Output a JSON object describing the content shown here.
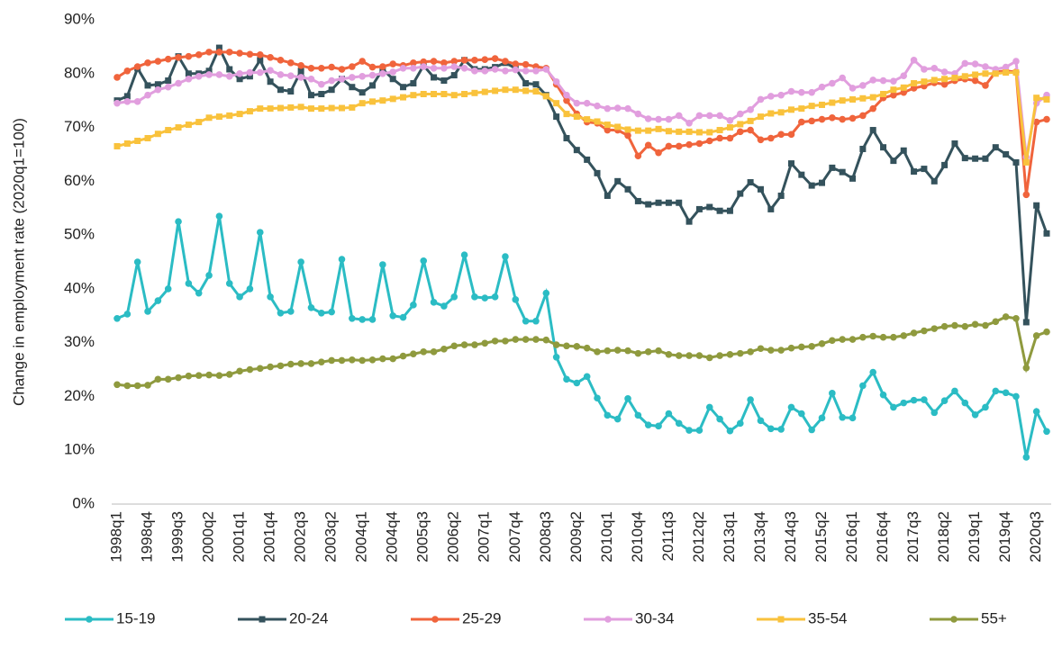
{
  "chart_data": {
    "type": "line",
    "y_axis_label": "Change in employment rate (2020q1=100)",
    "categories": [
      "1998q1",
      null,
      null,
      "1998q4",
      null,
      null,
      "1999q3",
      null,
      null,
      "2000q2",
      null,
      null,
      "2001q1",
      null,
      null,
      "2001q4",
      null,
      null,
      "2002q3",
      null,
      null,
      "2003q2",
      null,
      null,
      "2004q1",
      null,
      null,
      "2004q4",
      null,
      null,
      "2005q3",
      null,
      null,
      "2006q2",
      null,
      null,
      "2007q1",
      null,
      null,
      "2007q4",
      null,
      null,
      "2008q3",
      null,
      null,
      "2009q2",
      null,
      null,
      "2010q1",
      null,
      null,
      "2010q4",
      null,
      null,
      "2011q3",
      null,
      null,
      "2012q2",
      null,
      null,
      "2013q1",
      null,
      null,
      "2013q4",
      null,
      null,
      "2014q3",
      null,
      null,
      "2015q2",
      null,
      null,
      "2016q1",
      null,
      null,
      "2016q4",
      null,
      null,
      "2017q3",
      null,
      null,
      "2018q2",
      null,
      null,
      "2019q1",
      null,
      null,
      "2019q4",
      null,
      null,
      "2020q3",
      null
    ],
    "ylim": [
      0,
      90
    ],
    "yticks": [
      {
        "value": 0,
        "label": "0%"
      },
      {
        "value": 10,
        "label": "10%"
      },
      {
        "value": 20,
        "label": "20%"
      },
      {
        "value": 30,
        "label": "30%"
      },
      {
        "value": 40,
        "label": "40%"
      },
      {
        "value": 50,
        "label": "50%"
      },
      {
        "value": 60,
        "label": "60%"
      },
      {
        "value": 70,
        "label": "70%"
      },
      {
        "value": 80,
        "label": "80%"
      },
      {
        "value": 90,
        "label": "90%"
      }
    ],
    "grid": false,
    "legend": "bottom",
    "series": [
      {
        "name": "15-19",
        "color": "#2bbcc4",
        "marker": "circle",
        "values": [
          34.5,
          35.3,
          45,
          35.8,
          37.8,
          40,
          52.5,
          41,
          39.2,
          42.5,
          53.5,
          41,
          38.5,
          40,
          50.5,
          38.5,
          35.5,
          35.8,
          45,
          36.5,
          35.5,
          35.7,
          45.5,
          34.5,
          34.3,
          34.3,
          44.5,
          35,
          34.7,
          37,
          45.2,
          37.5,
          36.8,
          38.5,
          46.3,
          38.5,
          38.3,
          38.5,
          46,
          38,
          34,
          34,
          39.2,
          27.3,
          23.2,
          22.5,
          23.7,
          19.7,
          16.5,
          15.8,
          19.6,
          16.5,
          14.7,
          14.5,
          16.8,
          15,
          13.7,
          13.7,
          18,
          15.8,
          13.6,
          15,
          19.4,
          15.5,
          14,
          13.9,
          18,
          16.8,
          13.8,
          16,
          20.6,
          16.1,
          16,
          22,
          24.5,
          20.3,
          18,
          18.8,
          19.3,
          19.4,
          17,
          19.2,
          21,
          18.8,
          16.6,
          18,
          21,
          20.7,
          20,
          8.7,
          17.2,
          13.5
        ]
      },
      {
        "name": "20-24",
        "color": "#34525c",
        "marker": "square",
        "values": [
          75,
          75.8,
          81,
          77.8,
          78,
          78.7,
          83.2,
          80,
          80,
          80.5,
          84.8,
          80.8,
          79,
          79.5,
          82.5,
          78.5,
          77,
          76.7,
          80.5,
          76,
          76.2,
          77,
          79,
          77.5,
          76.5,
          77.8,
          80.8,
          79,
          77.5,
          78.2,
          81.5,
          79.3,
          78.7,
          79.7,
          82.5,
          80.8,
          80.8,
          81.2,
          82,
          81,
          78.2,
          78,
          76,
          72,
          68,
          65.8,
          64,
          61.5,
          57.3,
          60,
          58.5,
          56.3,
          55.7,
          56,
          56,
          56,
          52.5,
          54.8,
          55.2,
          54.5,
          54.5,
          57.7,
          59.8,
          58.5,
          54.8,
          57.3,
          63.3,
          61.2,
          59.2,
          59.7,
          62.5,
          61.7,
          60.5,
          66,
          69.5,
          66.3,
          63.8,
          65.7,
          61.8,
          62.3,
          60,
          63,
          67,
          64.3,
          64.2,
          64.2,
          66.3,
          65,
          63.5,
          33.8,
          55.5,
          50.3
        ]
      },
      {
        "name": "25-29",
        "color": "#f0643c",
        "marker": "circle",
        "values": [
          79.3,
          80.5,
          81.3,
          82,
          82.3,
          82.7,
          83,
          83.2,
          83.5,
          84,
          84,
          84,
          83.8,
          83.6,
          83.5,
          83,
          82.5,
          82,
          81.5,
          81,
          81,
          81.2,
          80.8,
          81.3,
          82.3,
          81.2,
          81.3,
          81.8,
          81.5,
          82,
          82.2,
          82.3,
          82,
          82.3,
          82.5,
          82.5,
          82.6,
          82.8,
          82.3,
          81.8,
          81.7,
          81.3,
          81,
          78,
          75,
          72.5,
          71,
          70.8,
          69.5,
          69.5,
          68.5,
          64.7,
          66.7,
          65.3,
          66.5,
          66.5,
          66.8,
          67,
          67.5,
          68,
          68,
          69.2,
          69.5,
          67.7,
          68,
          68.7,
          68.7,
          71,
          71.2,
          71.5,
          71.8,
          71.5,
          71.7,
          72.2,
          73.5,
          75.5,
          76,
          76.5,
          77.3,
          77.7,
          78.3,
          78,
          78.7,
          79,
          78.7,
          77.8,
          80.3,
          80.5,
          80.3,
          57.5,
          71,
          71.5
        ]
      },
      {
        "name": "30-34",
        "color": "#e19ede",
        "marker": "circle",
        "values": [
          74.5,
          74.8,
          74.8,
          76,
          77,
          77.5,
          78.2,
          79,
          79.5,
          79.8,
          79.8,
          79.5,
          80,
          80.2,
          80.2,
          80.6,
          79.8,
          79.6,
          79.3,
          79,
          78,
          78.7,
          79,
          79.3,
          79.5,
          79.7,
          80,
          80.3,
          81,
          81,
          81.3,
          81,
          81,
          81.3,
          81,
          80.5,
          80.5,
          80.8,
          80.5,
          80.7,
          80.5,
          80.5,
          80.8,
          78.5,
          76,
          74.5,
          74.5,
          74,
          73.5,
          73.6,
          73.5,
          72.5,
          71.6,
          71.5,
          71.5,
          72.2,
          70.8,
          72.2,
          72.2,
          72.2,
          71.3,
          72.5,
          73.3,
          75.2,
          75.8,
          76,
          76.7,
          76.5,
          76.5,
          77.5,
          78.2,
          79.2,
          77.3,
          77.8,
          78.8,
          78.7,
          78.6,
          79.6,
          82.5,
          80.8,
          81,
          80.3,
          80,
          81.9,
          81.8,
          81.3,
          80.8,
          81.2,
          82.3,
          64.5,
          74.5,
          76
        ]
      },
      {
        "name": "35-54",
        "color": "#f9c23c",
        "marker": "square",
        "values": [
          66.5,
          67,
          67.5,
          68,
          68.8,
          69.5,
          70,
          70.5,
          71,
          71.8,
          72,
          72.2,
          72.5,
          73,
          73.5,
          73.5,
          73.6,
          73.7,
          73.8,
          73.5,
          73.5,
          73.6,
          73.6,
          73.7,
          74.5,
          74.8,
          75,
          75.3,
          75.6,
          76,
          76.2,
          76.2,
          76.2,
          76,
          76.2,
          76.4,
          76.6,
          76.8,
          77,
          77,
          76.8,
          76.7,
          75.8,
          74.5,
          72.5,
          72,
          71.5,
          71.1,
          70.5,
          70.1,
          69.6,
          69.4,
          69.4,
          69.7,
          69.3,
          69.2,
          69.2,
          69.1,
          69.1,
          69.5,
          70,
          70.6,
          71.2,
          72,
          72.6,
          72.8,
          73.3,
          73.5,
          74,
          74.2,
          74.6,
          75,
          75.2,
          75.4,
          75.6,
          76.2,
          77,
          77.4,
          78.2,
          78.5,
          78.8,
          79,
          79.2,
          79.5,
          79.8,
          80,
          80,
          80.2,
          80.2,
          63.5,
          75.5,
          75.2
        ]
      },
      {
        "name": "55+",
        "color": "#8f9a3e",
        "marker": "circle",
        "values": [
          22.2,
          22,
          22,
          22.1,
          23.2,
          23.2,
          23.5,
          23.8,
          23.9,
          24,
          23.9,
          24.1,
          24.7,
          25,
          25.2,
          25.5,
          25.7,
          26,
          26.1,
          26.1,
          26.4,
          26.7,
          26.7,
          26.8,
          26.7,
          26.8,
          27,
          27,
          27.5,
          27.9,
          28.3,
          28.3,
          28.8,
          29.4,
          29.6,
          29.6,
          29.9,
          30.3,
          30.3,
          30.6,
          30.6,
          30.6,
          30.5,
          29.6,
          29.4,
          29.3,
          29,
          28.3,
          28.5,
          28.6,
          28.5,
          28,
          28.3,
          28.5,
          27.8,
          27.6,
          27.6,
          27.6,
          27.2,
          27.6,
          27.8,
          28,
          28.3,
          28.9,
          28.6,
          28.6,
          29,
          29.2,
          29.3,
          29.8,
          30.4,
          30.6,
          30.6,
          31,
          31.2,
          31,
          31,
          31.3,
          31.8,
          32.2,
          32.6,
          33,
          33.2,
          33,
          33.4,
          33.2,
          33.9,
          34.8,
          34.5,
          25.3,
          31.3,
          32
        ]
      }
    ]
  }
}
